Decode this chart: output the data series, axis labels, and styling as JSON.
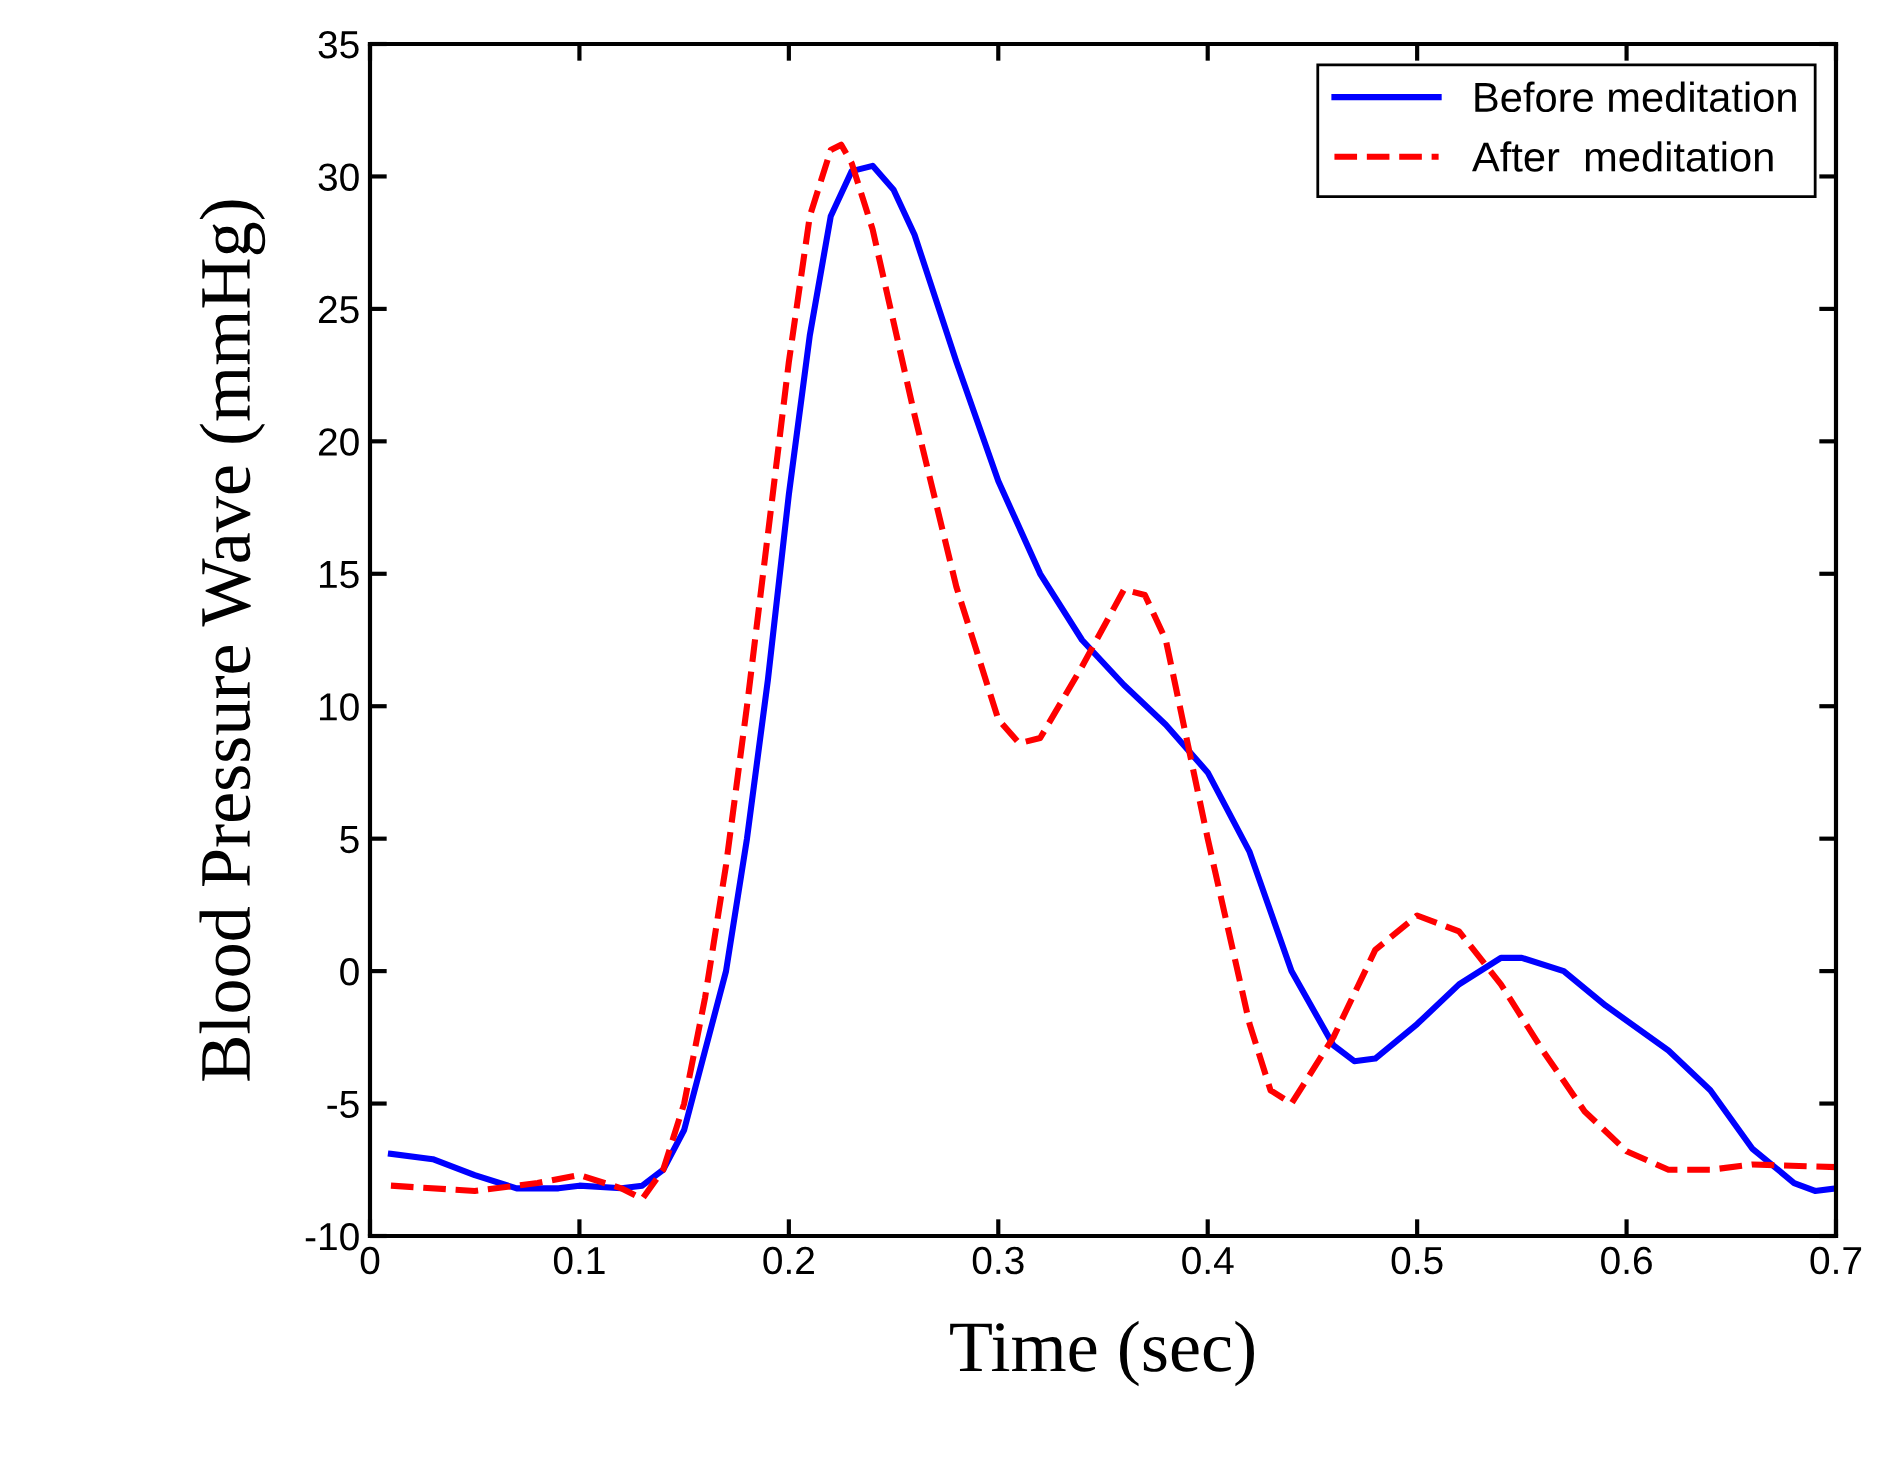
{
  "chart_data": {
    "type": "line",
    "xlabel": "Time (sec)",
    "ylabel": "Blood Pressure Wave (mmHg)",
    "xlim": [
      0,
      0.7
    ],
    "xticks": [
      0,
      0.1,
      0.2,
      0.3,
      0.4,
      0.5,
      0.6,
      0.7
    ],
    "ylim": [
      -10,
      35
    ],
    "yticks": [
      -10,
      -5,
      0,
      5,
      10,
      15,
      20,
      25,
      30,
      35
    ],
    "grid": false,
    "legend": "top right",
    "series": [
      {
        "name": "Before meditation",
        "color": "#0000ff",
        "line_style": "solid",
        "x": [
          0.01,
          0.03,
          0.05,
          0.07,
          0.09,
          0.1,
          0.12,
          0.13,
          0.14,
          0.15,
          0.16,
          0.17,
          0.18,
          0.19,
          0.2,
          0.21,
          0.22,
          0.23,
          0.24,
          0.25,
          0.26,
          0.28,
          0.3,
          0.32,
          0.34,
          0.36,
          0.38,
          0.4,
          0.42,
          0.44,
          0.46,
          0.47,
          0.48,
          0.5,
          0.52,
          0.54,
          0.55,
          0.57,
          0.59,
          0.62,
          0.64,
          0.66,
          0.68,
          0.69,
          0.7
        ],
        "values": [
          -6.9,
          -7.1,
          -7.7,
          -8.2,
          -8.2,
          -8.1,
          -8.2,
          -8.1,
          -7.5,
          -6,
          -3,
          0,
          5,
          11,
          18,
          24,
          28.5,
          30.2,
          30.4,
          29.5,
          27.8,
          23,
          18.5,
          15,
          12.5,
          10.8,
          9.3,
          7.5,
          4.5,
          0,
          -2.8,
          -3.4,
          -3.3,
          -2,
          -0.5,
          0.5,
          0.5,
          0,
          -1.3,
          -3,
          -4.5,
          -6.7,
          -8,
          -8.3,
          -8.2
        ]
      },
      {
        "name": "After  meditation",
        "color": "#ff0000",
        "line_style": "dashed",
        "x": [
          0.01,
          0.05,
          0.08,
          0.1,
          0.12,
          0.13,
          0.14,
          0.15,
          0.16,
          0.17,
          0.18,
          0.19,
          0.2,
          0.21,
          0.22,
          0.225,
          0.23,
          0.24,
          0.26,
          0.28,
          0.3,
          0.31,
          0.32,
          0.34,
          0.36,
          0.37,
          0.38,
          0.4,
          0.42,
          0.43,
          0.44,
          0.46,
          0.48,
          0.5,
          0.52,
          0.54,
          0.56,
          0.58,
          0.6,
          0.62,
          0.64,
          0.66,
          0.7
        ],
        "values": [
          -8.1,
          -8.3,
          -8.0,
          -7.7,
          -8.2,
          -8.6,
          -7.5,
          -5,
          -1,
          4,
          10,
          16.5,
          23,
          28.5,
          31,
          31.2,
          30.5,
          28,
          21,
          14.5,
          9.5,
          8.6,
          8.8,
          11.5,
          14.4,
          14.2,
          12.5,
          5,
          -2,
          -4.5,
          -5,
          -2.5,
          0.8,
          2.1,
          1.5,
          -0.5,
          -3,
          -5.3,
          -6.8,
          -7.5,
          -7.5,
          -7.3,
          -7.4
        ]
      }
    ]
  }
}
